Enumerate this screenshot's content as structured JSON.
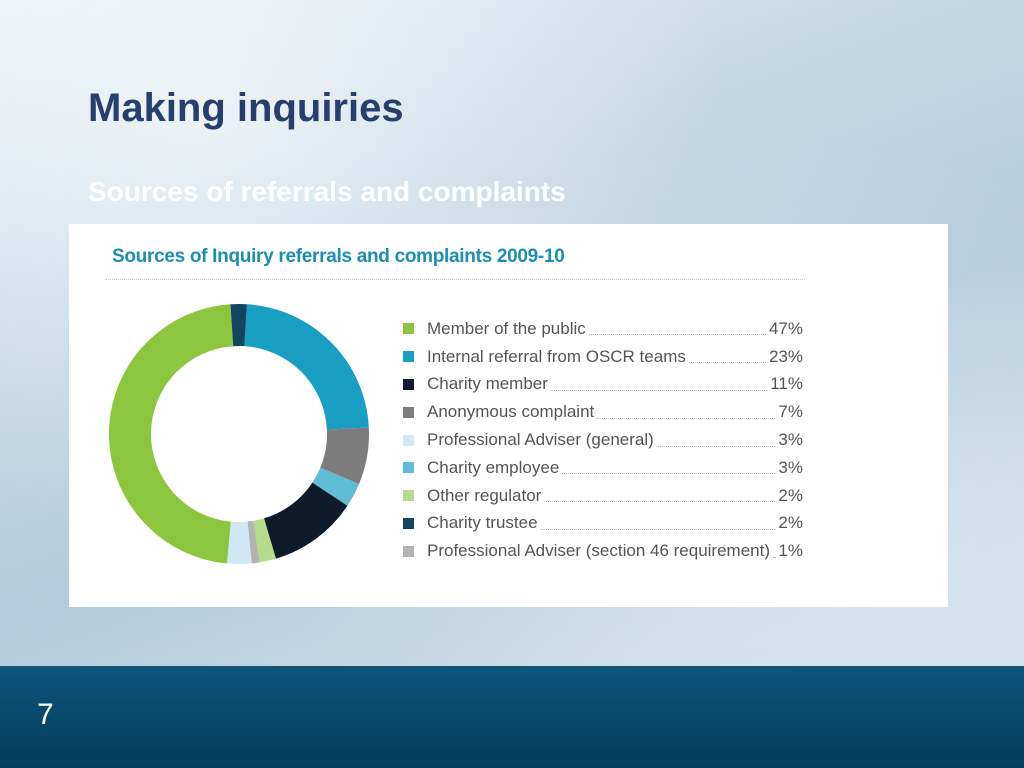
{
  "slide": {
    "title": "Making inquiries",
    "subtitle": "Sources of referrals and complaints",
    "page_number": "7"
  },
  "chart_data": {
    "type": "pie",
    "variant": "donut",
    "title": "Sources of Inquiry referrals and complaints 2009-10",
    "legend_position": "right",
    "slices": [
      {
        "label": "Member of the public",
        "value": 47,
        "display": "47%",
        "color": "#8cc63f"
      },
      {
        "label": "Internal referral from OSCR teams",
        "value": 23,
        "display": "23%",
        "color": "#1a9fc4"
      },
      {
        "label": "Charity member",
        "value": 11,
        "display": "11%",
        "color": "#0d1b2a"
      },
      {
        "label": "Anonymous complaint",
        "value": 7,
        "display": "7%",
        "color": "#7d7d7d"
      },
      {
        "label": "Professional Adviser (general)",
        "value": 3,
        "display": "3%",
        "color": "#cfe8f3"
      },
      {
        "label": "Charity employee",
        "value": 3,
        "display": "3%",
        "color": "#5fbcd6"
      },
      {
        "label": "Other regulator",
        "value": 2,
        "display": "2%",
        "color": "#b5dc8a"
      },
      {
        "label": "Charity trustee",
        "value": 2,
        "display": "2%",
        "color": "#144560"
      },
      {
        "label": "Professional Adviser (section 46 requirement)",
        "value": 1,
        "display": "1%",
        "color": "#b3b3b3"
      }
    ],
    "plot_order": [
      1,
      3,
      5,
      2,
      6,
      8,
      4,
      0,
      7
    ]
  }
}
